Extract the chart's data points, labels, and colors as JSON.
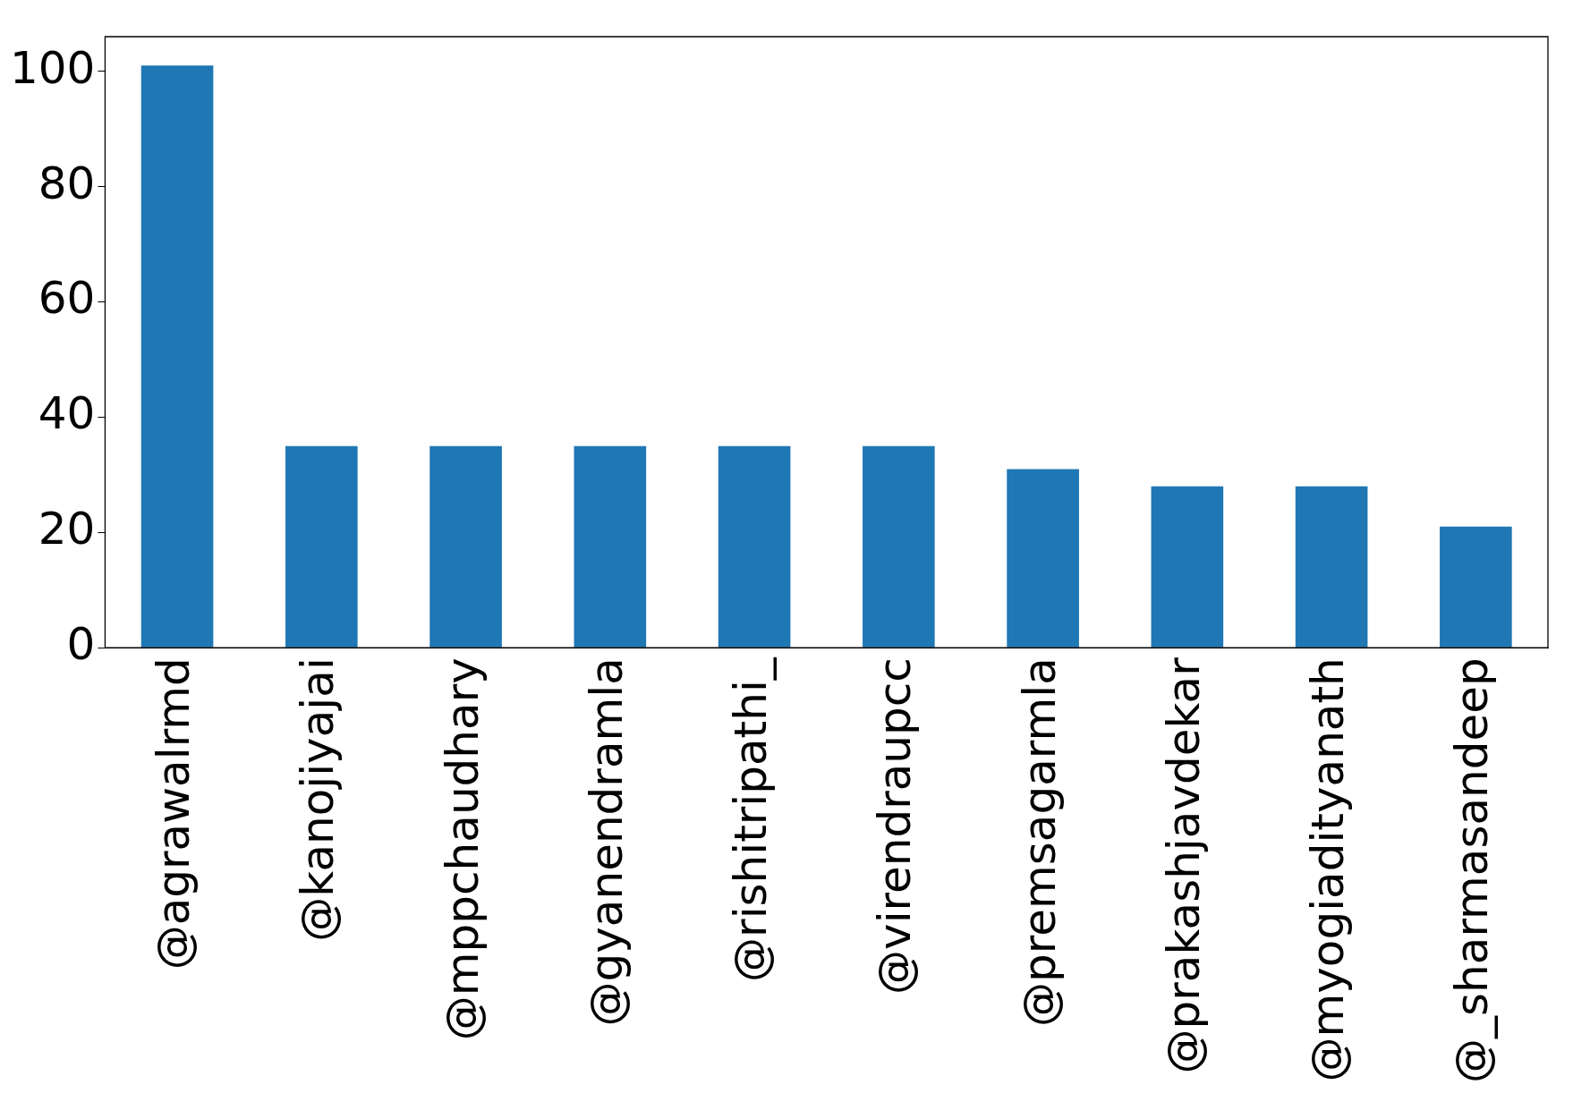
{
  "chart_data": {
    "type": "bar",
    "categories": [
      "@agrawalrmd",
      "@kanojiyajai",
      "@mppchaudhary",
      "@gyanendramla",
      "@rishitripathi_",
      "@virendraupcc",
      "@premsagarmla",
      "@prakashjavdekar",
      "@myogiadityanath",
      "@_sharmasandeep"
    ],
    "values": [
      101,
      35,
      35,
      35,
      35,
      35,
      31,
      28,
      28,
      21
    ],
    "color": "#1f77b4",
    "ylim": [
      0,
      106
    ],
    "yticks": [
      0,
      20,
      40,
      60,
      80,
      100
    ],
    "grid": false,
    "legend": false
  }
}
